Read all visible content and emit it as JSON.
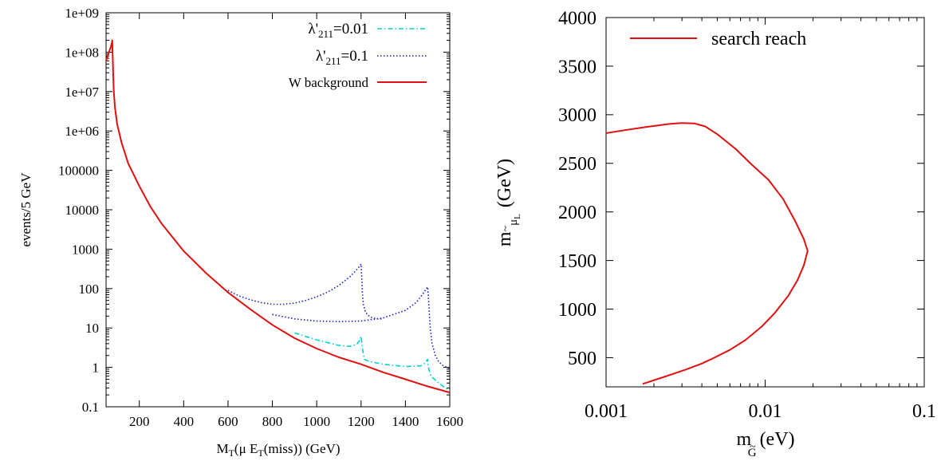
{
  "chart_data": [
    {
      "type": "line",
      "xlabel_main": "M",
      "xlabel_sub": "T",
      "xlabel_rest_1": "(μ E",
      "xlabel_sub2": "T",
      "xlabel_rest_2": "(miss)) (GeV)",
      "ylabel": "events/5 GeV",
      "xlim": [
        50,
        1600
      ],
      "ylim": [
        0.1,
        1000000000
      ],
      "yscale": "log",
      "x_ticks": [
        200,
        400,
        600,
        800,
        1000,
        1200,
        1400,
        1600
      ],
      "x_tick_labels": [
        "200",
        "400",
        "600",
        "800",
        "1000",
        "1200",
        "1400",
        "1600"
      ],
      "y_ticks": [
        0.1,
        1,
        10,
        100,
        1000,
        10000,
        100000,
        1000000,
        10000000,
        100000000,
        1000000000
      ],
      "y_tick_labels": [
        "0.1",
        "1",
        "10",
        "100",
        "1000",
        "10000",
        "100000",
        "1e+06",
        "1e+07",
        "1e+08",
        "1e+09"
      ],
      "legend_position": "top-right",
      "series": [
        {
          "name_main": "λ'",
          "name_sub": "211",
          "name_rest": "=0.01",
          "color": "#00d0d0",
          "style": "dash-dot",
          "segments": [
            {
              "x": [
                900,
                1000,
                1100,
                1150,
                1180,
                1195,
                1200,
                1205,
                1215,
                1240,
                1300,
                1400,
                1470,
                1490,
                1500,
                1505,
                1515,
                1550,
                1600
              ],
              "y": [
                7.5,
                5.0,
                3.6,
                3.4,
                3.8,
                5.0,
                6.2,
                3.2,
                1.6,
                1.4,
                1.2,
                1.05,
                1.1,
                1.3,
                1.6,
                0.9,
                0.6,
                0.4,
                0.25
              ]
            }
          ]
        },
        {
          "name_main": "λ'",
          "name_sub": "211",
          "name_rest": "=0.1",
          "color": "#1a1ad6",
          "style": "dotted",
          "segments": [
            {
              "x": [
                600,
                650,
                700,
                750,
                800,
                850,
                900,
                950,
                1000,
                1050,
                1100,
                1150,
                1180,
                1195,
                1200,
                1203,
                1206,
                1210,
                1220,
                1240,
                1270,
                1300
              ],
              "y": [
                90,
                65,
                52,
                44,
                40,
                40,
                43,
                50,
                62,
                82,
                120,
                200,
                300,
                380,
                420,
                200,
                80,
                40,
                25,
                19,
                17,
                17
              ]
            },
            {
              "x": [
                800,
                900,
                1000,
                1100,
                1200,
                1300,
                1400,
                1450,
                1480,
                1495,
                1500,
                1503,
                1507,
                1512,
                1520,
                1535,
                1550,
                1570,
                1600
              ],
              "y": [
                22,
                17,
                15,
                14.5,
                15,
                18,
                28,
                45,
                75,
                100,
                110,
                70,
                30,
                10,
                4,
                2,
                1.4,
                1.1,
                0.95
              ]
            }
          ]
        },
        {
          "name": "W background",
          "color": "#e01010",
          "style": "solid",
          "segments": [
            {
              "x": [
                50,
                60,
                70,
                75,
                78,
                80,
                82,
                85,
                90,
                100,
                120,
                150,
                200,
                250,
                300,
                400,
                500,
                600,
                700,
                800,
                900,
                1000,
                1100,
                1200,
                1300,
                1400,
                1500,
                1600
              ],
              "y": [
                60000000,
                90000000,
                130000000,
                160000000,
                200000000,
                80000000,
                30000000,
                10000000,
                4000000,
                1500000,
                500000,
                150000,
                40000,
                12000,
                4500,
                900,
                250,
                80,
                30,
                12,
                5.5,
                3.0,
                1.8,
                1.2,
                0.75,
                0.5,
                0.33,
                0.23
              ]
            }
          ]
        }
      ]
    },
    {
      "type": "line",
      "xlabel_main": "m",
      "xlabel_sub": "~",
      "xlabel_subsub": "G",
      "xlabel_rest": "(eV)",
      "ylabel_main": "m",
      "ylabel_sub": "~",
      "ylabel_subsub": "μ",
      "ylabel_subsubsub": "L",
      "ylabel_rest": "(GeV)",
      "xlim": [
        0.001,
        0.1
      ],
      "xscale": "log",
      "ylim": [
        200,
        4000
      ],
      "x_ticks": [
        0.001,
        0.01,
        0.1
      ],
      "x_tick_labels": [
        "0.001",
        "0.01",
        "0.1"
      ],
      "y_ticks": [
        500,
        1000,
        1500,
        2000,
        2500,
        3000,
        3500,
        4000
      ],
      "y_tick_labels": [
        "500",
        "1000",
        "1500",
        "2000",
        "2500",
        "3000",
        "3500",
        "4000"
      ],
      "legend_position": "top-left",
      "series": [
        {
          "name": "search reach",
          "color": "#e01010",
          "style": "solid",
          "segments": [
            {
              "x": [
                0.001,
                0.0013,
                0.0018,
                0.0025,
                0.003,
                0.0036,
                0.0042,
                0.005,
                0.0065,
                0.0082,
                0.0105,
                0.013,
                0.0155,
                0.0175,
                0.0185,
                0.0175,
                0.016,
                0.014,
                0.0115,
                0.0095,
                0.0075,
                0.006,
                0.0048,
                0.004,
                0.0032,
                0.0026,
                0.0022,
                0.0017
              ],
              "y": [
                2810,
                2840,
                2875,
                2905,
                2915,
                2910,
                2880,
                2800,
                2650,
                2490,
                2330,
                2130,
                1900,
                1720,
                1600,
                1450,
                1300,
                1140,
                960,
                820,
                680,
                580,
                500,
                440,
                380,
                330,
                290,
                230
              ]
            }
          ]
        }
      ]
    }
  ]
}
